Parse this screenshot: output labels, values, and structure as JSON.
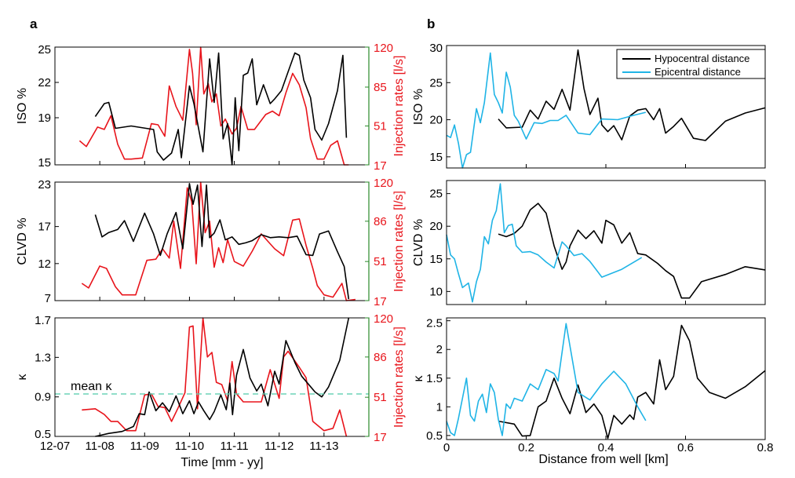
{
  "colors": {
    "black": "#000000",
    "red": "#e8141b",
    "cyan": "#1fb4e6",
    "mean": "#5fcfb0",
    "rightaxis": "#2a8a2a"
  },
  "panels": {
    "a": "a",
    "b": "b"
  },
  "time_axis": {
    "ticks": [
      "12-07",
      "11-08",
      "11-09",
      "11-10",
      "11-11",
      "11-12",
      "11-13"
    ],
    "label": "Time  [mm - yy]"
  },
  "dist_axis": {
    "ticks": [
      "0",
      "0.2",
      "0.4",
      "0.6",
      "0.8"
    ],
    "label": "Distance from well [km]"
  },
  "legend": {
    "entries": [
      "Hypocentral distance",
      "Epicentral distance"
    ]
  },
  "mean_kappa_label": "mean κ",
  "chart_data": [
    {
      "id": "a1",
      "type": "line",
      "ylabel": "ISO %",
      "y2label": "Injection rates [l/s]",
      "yticks": [
        "15",
        "19",
        "22",
        "25"
      ],
      "y2ticks": [
        "17",
        "51",
        "85",
        "120"
      ],
      "ylim": [
        15,
        25
      ],
      "y2lim": [
        17,
        120
      ],
      "xlim": [
        0,
        7
      ],
      "series": [
        {
          "color": "black",
          "x": [
            0.9,
            1.1,
            1.2,
            1.35,
            1.7,
            2.2,
            2.28,
            2.42,
            2.6,
            2.75,
            2.82,
            3.0,
            3.1,
            3.3,
            3.45,
            3.55,
            3.65,
            3.75,
            3.85,
            3.95,
            4.02,
            4.1,
            4.2,
            4.3,
            4.4,
            4.5,
            4.65,
            4.8,
            4.9,
            5.05,
            5.2,
            5.35,
            5.45,
            5.55,
            5.7,
            5.8,
            5.95,
            6.1,
            6.3,
            6.42,
            6.5
          ],
          "y": [
            19.1,
            20.2,
            20.3,
            18.1,
            18.3,
            18.0,
            16.1,
            15.4,
            16.0,
            18.0,
            15.6,
            21.7,
            20.2,
            16.1,
            24.0,
            20.3,
            24.5,
            17.2,
            18.5,
            15.0,
            20.7,
            16.2,
            22.6,
            22.8,
            24.0,
            20.1,
            21.8,
            20.2,
            20.6,
            21.3,
            22.9,
            24.5,
            24.3,
            22.2,
            20.7,
            18.0,
            17.1,
            18.5,
            21.3,
            24.3,
            17.3
          ]
        },
        {
          "color": "red",
          "axis": "y2",
          "x": [
            0.55,
            0.7,
            0.95,
            1.1,
            1.25,
            1.4,
            1.55,
            1.7,
            1.95,
            2.15,
            2.3,
            2.45,
            2.55,
            2.7,
            2.85,
            3.0,
            3.07,
            3.15,
            3.25,
            3.32,
            3.42,
            3.5,
            3.6,
            3.7,
            3.8,
            3.95,
            4.05,
            4.15,
            4.3,
            4.45,
            4.7,
            4.85,
            5.0,
            5.15,
            5.3,
            5.45,
            5.6,
            5.7,
            5.85,
            6.0,
            6.15,
            6.3,
            6.45,
            6.55
          ],
          "y": [
            38,
            33,
            50,
            48,
            60,
            35,
            22,
            22,
            23,
            53,
            52,
            42,
            86,
            68,
            56,
            118,
            97,
            52,
            122,
            79,
            88,
            72,
            79,
            51,
            57,
            44,
            49,
            68,
            48,
            48,
            61,
            64,
            60,
            80,
            97,
            87,
            67,
            40,
            22,
            22,
            34,
            38,
            17,
            17
          ]
        }
      ]
    },
    {
      "id": "a2",
      "type": "line",
      "ylabel": "CLVD %",
      "y2label": "Injection rates [l/s]",
      "yticks": [
        "7",
        "12",
        "17",
        "23"
      ],
      "y2ticks": [
        "17",
        "51",
        "86",
        "120"
      ],
      "ylim": [
        7,
        23
      ],
      "y2lim": [
        17,
        120
      ],
      "xlim": [
        0,
        7
      ],
      "series": [
        {
          "color": "black",
          "x": [
            0.9,
            1.05,
            1.2,
            1.4,
            1.55,
            1.75,
            2.0,
            2.2,
            2.35,
            2.5,
            2.7,
            2.85,
            3.0,
            3.08,
            3.18,
            3.28,
            3.38,
            3.45,
            3.55,
            3.68,
            3.8,
            3.95,
            4.1,
            4.25,
            4.4,
            4.6,
            4.8,
            5.0,
            5.2,
            5.4,
            5.6,
            5.75,
            5.9,
            6.1,
            6.3,
            6.45,
            6.55
          ],
          "y": [
            18.6,
            15.6,
            16.2,
            16.6,
            17.8,
            15.0,
            18.8,
            16.0,
            13.1,
            16.0,
            18.9,
            14.0,
            22.8,
            20.0,
            22.6,
            14.3,
            22.6,
            15.5,
            16.1,
            17.9,
            15.2,
            15.6,
            14.6,
            14.8,
            15.1,
            15.9,
            15.5,
            15.6,
            15.5,
            15.7,
            13.2,
            13.1,
            16.0,
            16.4,
            13.6,
            11.6,
            7.2
          ]
        },
        {
          "color": "red",
          "axis": "y2",
          "x": [
            0.6,
            0.75,
            1.0,
            1.15,
            1.35,
            1.5,
            1.8,
            2.05,
            2.25,
            2.4,
            2.55,
            2.65,
            2.8,
            2.95,
            3.05,
            3.15,
            3.25,
            3.35,
            3.45,
            3.55,
            3.65,
            3.75,
            3.85,
            4.0,
            4.2,
            4.4,
            4.6,
            4.9,
            5.1,
            5.3,
            5.45,
            5.6,
            5.75,
            5.85,
            6.0,
            6.2,
            6.4,
            6.5,
            6.7
          ],
          "y": [
            32,
            28,
            47,
            45,
            29,
            22,
            22,
            52,
            53,
            62,
            54,
            86,
            45,
            115,
            103,
            49,
            122,
            76,
            86,
            46,
            63,
            50,
            70,
            51,
            47,
            60,
            75,
            62,
            56,
            87,
            88,
            65,
            45,
            30,
            22,
            20,
            32,
            17,
            18
          ]
        }
      ]
    },
    {
      "id": "a3",
      "type": "line",
      "ylabel": "κ",
      "y2label": "Injection rates [l/s]",
      "yticks": [
        "0.5",
        "0.9",
        "1.3",
        "1.7"
      ],
      "y2ticks": [
        "17",
        "51",
        "86",
        "120"
      ],
      "ylim": [
        0.5,
        1.7
      ],
      "y2lim": [
        17,
        120
      ],
      "xlim": [
        0,
        7
      ],
      "mean_kappa": 0.93,
      "series": [
        {
          "color": "black",
          "x": [
            0.9,
            1.2,
            1.5,
            1.75,
            1.88,
            2.0,
            2.1,
            2.25,
            2.4,
            2.55,
            2.7,
            2.85,
            3.0,
            3.1,
            3.2,
            3.32,
            3.45,
            3.55,
            3.7,
            3.82,
            3.9,
            3.96,
            4.05,
            4.2,
            4.35,
            4.5,
            4.6,
            4.75,
            4.9,
            5.0,
            5.15,
            5.35,
            5.5,
            5.65,
            5.8,
            5.95,
            6.1,
            6.35,
            6.55
          ],
          "y": [
            0.5,
            0.53,
            0.55,
            0.6,
            0.73,
            0.72,
            0.95,
            0.76,
            0.84,
            0.75,
            0.91,
            0.73,
            0.86,
            0.73,
            0.85,
            0.76,
            0.67,
            0.75,
            0.92,
            0.77,
            1.04,
            0.72,
            1.12,
            1.38,
            1.09,
            0.96,
            1.03,
            0.81,
            1.16,
            1.03,
            1.47,
            1.25,
            1.11,
            1.03,
            0.95,
            0.9,
            1.0,
            1.27,
            1.7
          ]
        },
        {
          "color": "red",
          "axis": "y2",
          "x": [
            0.6,
            0.9,
            1.1,
            1.25,
            1.4,
            1.6,
            1.8,
            2.0,
            2.15,
            2.3,
            2.45,
            2.6,
            2.75,
            2.9,
            3.0,
            3.08,
            3.18,
            3.3,
            3.4,
            3.5,
            3.6,
            3.72,
            3.85,
            3.95,
            4.05,
            4.2,
            4.4,
            4.6,
            4.8,
            5.0,
            5.1,
            5.2,
            5.45,
            5.6,
            5.75,
            6.0,
            6.2,
            6.35,
            6.5
          ],
          "y": [
            40,
            41,
            36,
            30,
            30,
            22,
            22,
            53,
            54,
            43,
            42,
            30,
            42,
            55,
            112,
            113,
            41,
            121,
            86,
            90,
            64,
            62,
            48,
            82,
            54,
            47,
            47,
            47,
            75,
            50,
            86,
            91,
            77,
            68,
            30,
            22,
            24,
            40,
            17
          ]
        }
      ]
    },
    {
      "id": "b1",
      "type": "line",
      "ylabel": "ISO %",
      "yticks": [
        "15",
        "20",
        "25",
        "30"
      ],
      "ylim": [
        13.5,
        30
      ],
      "xlim": [
        0,
        0.8
      ],
      "series": [
        {
          "name": "Hypocentral distance",
          "color": "black",
          "x": [
            0.13,
            0.15,
            0.19,
            0.21,
            0.23,
            0.25,
            0.27,
            0.29,
            0.31,
            0.33,
            0.345,
            0.36,
            0.38,
            0.39,
            0.405,
            0.42,
            0.44,
            0.46,
            0.48,
            0.5,
            0.52,
            0.535,
            0.55,
            0.57,
            0.59,
            0.62,
            0.65,
            0.7,
            0.75,
            0.8
          ],
          "y": [
            20.1,
            18.9,
            19.0,
            21.3,
            20.1,
            22.5,
            21.4,
            24.1,
            21.3,
            29.4,
            24.2,
            20.7,
            22.9,
            19.3,
            18.4,
            19.2,
            17.3,
            20.5,
            21.3,
            21.5,
            20.0,
            21.5,
            18.2,
            19.1,
            20.2,
            17.5,
            17.2,
            19.8,
            20.9,
            21.6
          ]
        },
        {
          "name": "Epicentral distance",
          "color": "cyan",
          "x": [
            0.0,
            0.01,
            0.02,
            0.03,
            0.04,
            0.05,
            0.06,
            0.075,
            0.085,
            0.095,
            0.11,
            0.12,
            0.13,
            0.14,
            0.15,
            0.16,
            0.17,
            0.18,
            0.2,
            0.22,
            0.24,
            0.26,
            0.28,
            0.3,
            0.33,
            0.36,
            0.39,
            0.43,
            0.47,
            0.5
          ],
          "y": [
            17.9,
            17.6,
            19.3,
            16.8,
            13.5,
            15.3,
            15.6,
            21.5,
            19.6,
            22.3,
            29.0,
            23.4,
            22.3,
            20.9,
            26.4,
            24.4,
            20.6,
            19.8,
            17.4,
            19.6,
            19.5,
            19.9,
            19.9,
            20.6,
            18.2,
            18.0,
            20.1,
            20.0,
            20.6,
            21.0
          ]
        }
      ]
    },
    {
      "id": "b2",
      "type": "line",
      "ylabel": "CLVD %",
      "yticks": [
        "10",
        "15",
        "20",
        "25"
      ],
      "ylim": [
        8,
        27
      ],
      "xlim": [
        0,
        0.8
      ],
      "series": [
        {
          "name": "Hypocentral distance",
          "color": "black",
          "x": [
            0.13,
            0.15,
            0.17,
            0.19,
            0.21,
            0.23,
            0.25,
            0.27,
            0.29,
            0.3,
            0.31,
            0.33,
            0.35,
            0.37,
            0.39,
            0.4,
            0.42,
            0.44,
            0.46,
            0.48,
            0.5,
            0.53,
            0.55,
            0.57,
            0.59,
            0.61,
            0.64,
            0.7,
            0.75,
            0.8
          ],
          "y": [
            18.8,
            18.4,
            18.9,
            20.0,
            22.5,
            23.5,
            22.0,
            17.0,
            13.4,
            14.5,
            17.0,
            19.4,
            18.1,
            19.3,
            17.4,
            20.9,
            20.2,
            17.4,
            19.0,
            15.8,
            15.6,
            14.3,
            13.2,
            12.3,
            9.0,
            9.0,
            11.5,
            12.6,
            13.8,
            13.3
          ]
        },
        {
          "name": "Epicentral distance",
          "color": "cyan",
          "x": [
            0.0,
            0.01,
            0.02,
            0.03,
            0.04,
            0.055,
            0.065,
            0.075,
            0.085,
            0.095,
            0.105,
            0.115,
            0.125,
            0.135,
            0.145,
            0.155,
            0.165,
            0.175,
            0.19,
            0.21,
            0.23,
            0.25,
            0.27,
            0.29,
            0.3,
            0.32,
            0.34,
            0.36,
            0.39,
            0.44,
            0.49
          ],
          "y": [
            18.7,
            15.6,
            15.0,
            12.7,
            10.6,
            11.3,
            8.4,
            11.5,
            13.4,
            18.4,
            17.3,
            20.9,
            22.4,
            26.5,
            19.0,
            20.1,
            20.3,
            17.0,
            16.0,
            16.1,
            15.6,
            14.5,
            13.6,
            17.6,
            17.0,
            15.5,
            15.8,
            14.6,
            12.2,
            13.4,
            15.2
          ]
        }
      ]
    },
    {
      "id": "b3",
      "type": "line",
      "ylabel": "κ",
      "yticks": [
        "0.5",
        "1",
        "1.5",
        "2",
        "2.5"
      ],
      "ylim": [
        0.43,
        2.55
      ],
      "xlim": [
        0,
        0.8
      ],
      "series": [
        {
          "name": "Hypocentral distance",
          "color": "black",
          "x": [
            0.13,
            0.17,
            0.19,
            0.21,
            0.23,
            0.25,
            0.27,
            0.29,
            0.31,
            0.33,
            0.35,
            0.37,
            0.39,
            0.405,
            0.42,
            0.44,
            0.46,
            0.47,
            0.48,
            0.5,
            0.52,
            0.535,
            0.55,
            0.57,
            0.59,
            0.61,
            0.63,
            0.66,
            0.7,
            0.75,
            0.8
          ],
          "y": [
            0.75,
            0.7,
            0.49,
            0.5,
            1.0,
            1.1,
            1.5,
            1.15,
            0.88,
            1.38,
            0.9,
            1.05,
            0.85,
            0.45,
            0.85,
            0.7,
            0.86,
            0.78,
            1.17,
            1.25,
            1.05,
            1.82,
            1.3,
            1.53,
            2.42,
            2.15,
            1.5,
            1.25,
            1.15,
            1.35,
            1.63
          ]
        },
        {
          "name": "Epicentral distance",
          "color": "cyan",
          "x": [
            0.0,
            0.01,
            0.02,
            0.03,
            0.04,
            0.05,
            0.06,
            0.07,
            0.08,
            0.09,
            0.1,
            0.11,
            0.12,
            0.13,
            0.14,
            0.15,
            0.16,
            0.17,
            0.19,
            0.21,
            0.23,
            0.25,
            0.27,
            0.28,
            0.3,
            0.33,
            0.36,
            0.39,
            0.42,
            0.45,
            0.48,
            0.5
          ],
          "y": [
            0.75,
            0.55,
            0.5,
            0.8,
            1.15,
            1.5,
            0.85,
            0.75,
            1.1,
            1.22,
            0.9,
            1.4,
            1.25,
            0.78,
            0.5,
            1.05,
            0.97,
            1.15,
            1.1,
            1.4,
            1.3,
            1.65,
            1.58,
            1.45,
            2.45,
            1.25,
            1.12,
            1.4,
            1.62,
            1.4,
            1.0,
            0.76
          ]
        }
      ]
    }
  ]
}
